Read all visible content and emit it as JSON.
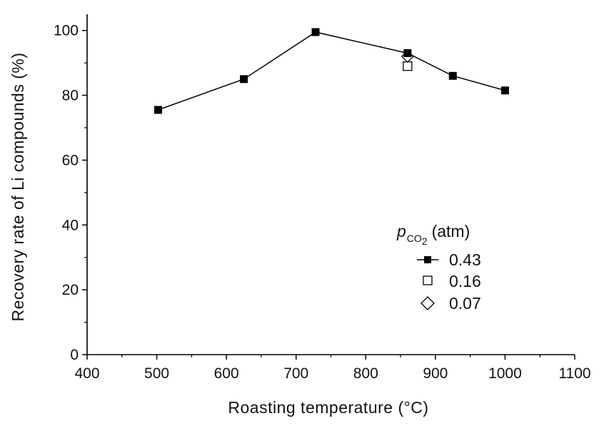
{
  "chart_data": {
    "type": "scatter",
    "xlabel": "Roasting temperature (°C)",
    "ylabel": "Recovery rate of Li compounds (%)",
    "xlim": [
      400,
      1100
    ],
    "ylim": [
      0,
      105
    ],
    "x_ticks": [
      400,
      500,
      600,
      700,
      800,
      900,
      1000,
      1100
    ],
    "y_ticks": [
      0,
      20,
      40,
      60,
      80,
      100
    ],
    "x_tick_labels": [
      "400",
      "500",
      "600",
      "700",
      "800",
      "900",
      "1000",
      "1100"
    ],
    "y_tick_labels": [
      "0",
      "20",
      "40",
      "60",
      "80",
      "100"
    ],
    "grid": false,
    "legend_position": "center-right",
    "legend": {
      "title_symbol": "p",
      "title_subscript": "CO",
      "title_subsubscript": "2",
      "title_unit": "(atm)"
    },
    "series": [
      {
        "name": "0.43",
        "marker": "filled-square",
        "line": true,
        "color": "#000000",
        "x": [
          502,
          625,
          728,
          860,
          925,
          1000
        ],
        "y": [
          75.5,
          85,
          99.5,
          93,
          86,
          81.5
        ]
      },
      {
        "name": "0.16",
        "marker": "open-square",
        "line": false,
        "color": "#000000",
        "x": [
          860
        ],
        "y": [
          89
        ]
      },
      {
        "name": "0.07",
        "marker": "open-diamond",
        "line": false,
        "color": "#000000",
        "x": [
          860
        ],
        "y": [
          92
        ]
      }
    ]
  }
}
